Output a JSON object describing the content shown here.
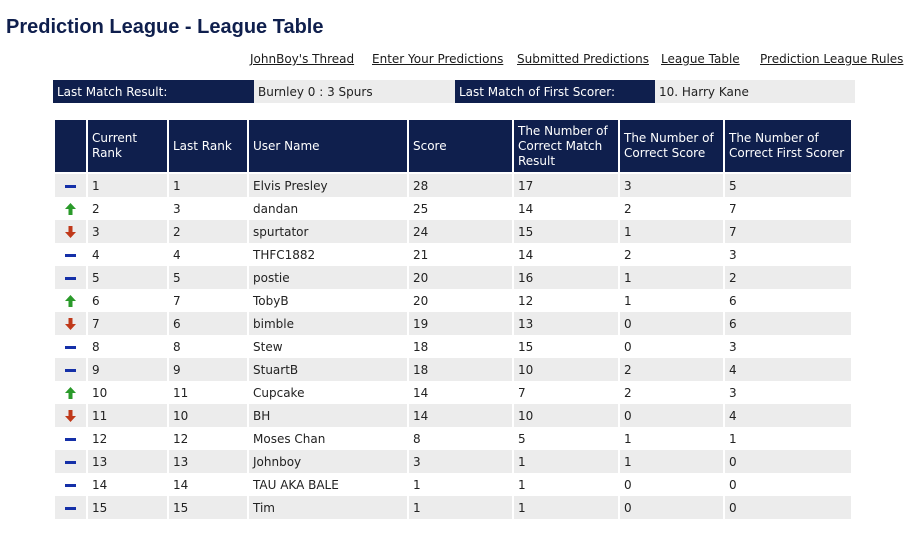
{
  "page_title": "Prediction League - League Table",
  "nav": [
    {
      "label": "JohnBoy's Thread",
      "name": "nav-link-johnboys-thread"
    },
    {
      "label": "Enter Your Predictions",
      "name": "nav-link-enter-predictions"
    },
    {
      "label": "Submitted Predictions",
      "name": "nav-link-submitted-predictions"
    },
    {
      "label": "League Table",
      "name": "nav-link-league-table"
    },
    {
      "label": "Prediction League Rules",
      "name": "nav-link-rules"
    }
  ],
  "summary": {
    "last_match_label": "Last Match Result:",
    "last_match_value": "Burnley 0 : 3 Spurs",
    "first_scorer_label": "Last Match of First Scorer:",
    "first_scorer_value": "10. Harry Kane"
  },
  "table": {
    "headers": [
      "",
      "Current Rank",
      "Last Rank",
      "User Name",
      "Score",
      "The Number of Correct Match Result",
      "The Number of Correct Score",
      "The Number of Correct First Scorer"
    ],
    "rows": [
      {
        "trend": "same",
        "current": "1",
        "last": "1",
        "user": "Elvis Presley",
        "score": "28",
        "result": "17",
        "correct_score": "3",
        "first_scorer": "5"
      },
      {
        "trend": "up",
        "current": "2",
        "last": "3",
        "user": "dandan",
        "score": "25",
        "result": "14",
        "correct_score": "2",
        "first_scorer": "7"
      },
      {
        "trend": "down",
        "current": "3",
        "last": "2",
        "user": "spurtator",
        "score": "24",
        "result": "15",
        "correct_score": "1",
        "first_scorer": "7"
      },
      {
        "trend": "same",
        "current": "4",
        "last": "4",
        "user": "THFC1882",
        "score": "21",
        "result": "14",
        "correct_score": "2",
        "first_scorer": "3"
      },
      {
        "trend": "same",
        "current": "5",
        "last": "5",
        "user": "postie",
        "score": "20",
        "result": "16",
        "correct_score": "1",
        "first_scorer": "2"
      },
      {
        "trend": "up",
        "current": "6",
        "last": "7",
        "user": "TobyB",
        "score": "20",
        "result": "12",
        "correct_score": "1",
        "first_scorer": "6"
      },
      {
        "trend": "down",
        "current": "7",
        "last": "6",
        "user": "bimble",
        "score": "19",
        "result": "13",
        "correct_score": "0",
        "first_scorer": "6"
      },
      {
        "trend": "same",
        "current": "8",
        "last": "8",
        "user": "Stew",
        "score": "18",
        "result": "15",
        "correct_score": "0",
        "first_scorer": "3"
      },
      {
        "trend": "same",
        "current": "9",
        "last": "9",
        "user": "StuartB",
        "score": "18",
        "result": "10",
        "correct_score": "2",
        "first_scorer": "4"
      },
      {
        "trend": "up",
        "current": "10",
        "last": "11",
        "user": "Cupcake",
        "score": "14",
        "result": "7",
        "correct_score": "2",
        "first_scorer": "3"
      },
      {
        "trend": "down",
        "current": "11",
        "last": "10",
        "user": "BH",
        "score": "14",
        "result": "10",
        "correct_score": "0",
        "first_scorer": "4"
      },
      {
        "trend": "same",
        "current": "12",
        "last": "12",
        "user": "Moses Chan",
        "score": "8",
        "result": "5",
        "correct_score": "1",
        "first_scorer": "1"
      },
      {
        "trend": "same",
        "current": "13",
        "last": "13",
        "user": "Johnboy",
        "score": "3",
        "result": "1",
        "correct_score": "1",
        "first_scorer": "0"
      },
      {
        "trend": "same",
        "current": "14",
        "last": "14",
        "user": "TAU AKA BALE",
        "score": "1",
        "result": "1",
        "correct_score": "0",
        "first_scorer": "0"
      },
      {
        "trend": "same",
        "current": "15",
        "last": "15",
        "user": "Tim",
        "score": "1",
        "result": "1",
        "correct_score": "0",
        "first_scorer": "0"
      }
    ]
  },
  "icons": {
    "same": "no-change-dash-icon",
    "up": "up-arrow-icon",
    "down": "down-arrow-icon"
  },
  "colors": {
    "header_bg": "#0f1f4d",
    "row_alt_bg": "#ececec",
    "same": "#1530a8",
    "up": "#2a9a2a",
    "down": "#c0391a"
  }
}
